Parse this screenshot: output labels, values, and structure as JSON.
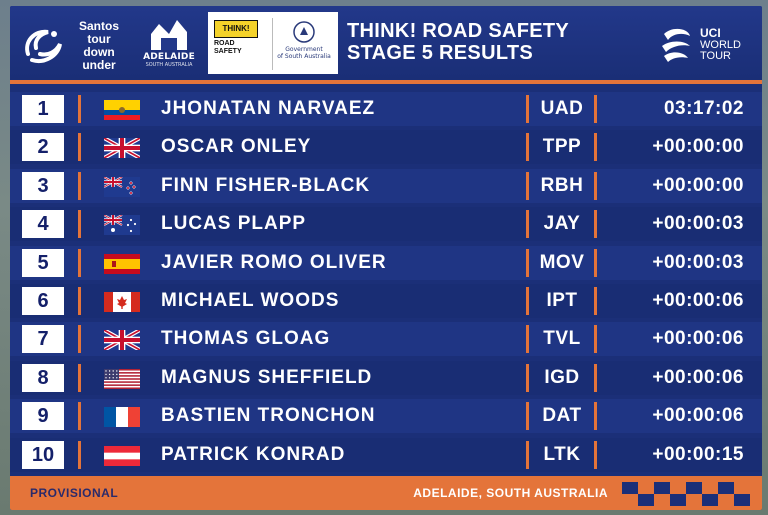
{
  "header": {
    "santos_logo": [
      "Santos",
      "tour",
      "down",
      "under"
    ],
    "adelaide_logo": {
      "name": "ADELAIDE",
      "sub": "SOUTH AUSTRALIA"
    },
    "partner": {
      "think": "THINK!",
      "road": "ROAD",
      "safety": "SAFETY",
      "gov_line1": "Government",
      "gov_line2": "of South Australia"
    },
    "title_line1": "THINK! ROAD SAFETY",
    "title_line2": "STAGE 5 RESULTS",
    "uci": {
      "line1": "UCI",
      "line2": "WORLD",
      "line3": "TOUR"
    }
  },
  "results": [
    {
      "rank": "1",
      "flag": "ecuador-flag",
      "rider": "JHONATAN NARVAEZ",
      "team": "UAD",
      "time": "03:17:02"
    },
    {
      "rank": "2",
      "flag": "uk-flag",
      "rider": "OSCAR ONLEY",
      "team": "TPP",
      "time": "+00:00:00"
    },
    {
      "rank": "3",
      "flag": "new-zealand-flag",
      "rider": "FINN FISHER-BLACK",
      "team": "RBH",
      "time": "+00:00:00"
    },
    {
      "rank": "4",
      "flag": "australia-flag",
      "rider": "LUCAS PLAPP",
      "team": "JAY",
      "time": "+00:00:03"
    },
    {
      "rank": "5",
      "flag": "spain-flag",
      "rider": "JAVIER ROMO OLIVER",
      "team": "MOV",
      "time": "+00:00:03"
    },
    {
      "rank": "6",
      "flag": "canada-flag",
      "rider": "MICHAEL WOODS",
      "team": "IPT",
      "time": "+00:00:06"
    },
    {
      "rank": "7",
      "flag": "uk-flag",
      "rider": "THOMAS GLOAG",
      "team": "TVL",
      "time": "+00:00:06"
    },
    {
      "rank": "8",
      "flag": "usa-flag",
      "rider": "MAGNUS SHEFFIELD",
      "team": "IGD",
      "time": "+00:00:06"
    },
    {
      "rank": "9",
      "flag": "france-flag",
      "rider": "BASTIEN TRONCHON",
      "team": "DAT",
      "time": "+00:00:06"
    },
    {
      "rank": "10",
      "flag": "austria-flag",
      "rider": "PATRICK KONRAD",
      "team": "LTK",
      "time": "+00:00:15"
    }
  ],
  "footer": {
    "status": "PROVISIONAL",
    "location": "ADELAIDE, SOUTH AUSTRALIA"
  },
  "colors": {
    "board": "#1b2f78",
    "accent": "#e4743a",
    "rank_text": "#14206a"
  }
}
